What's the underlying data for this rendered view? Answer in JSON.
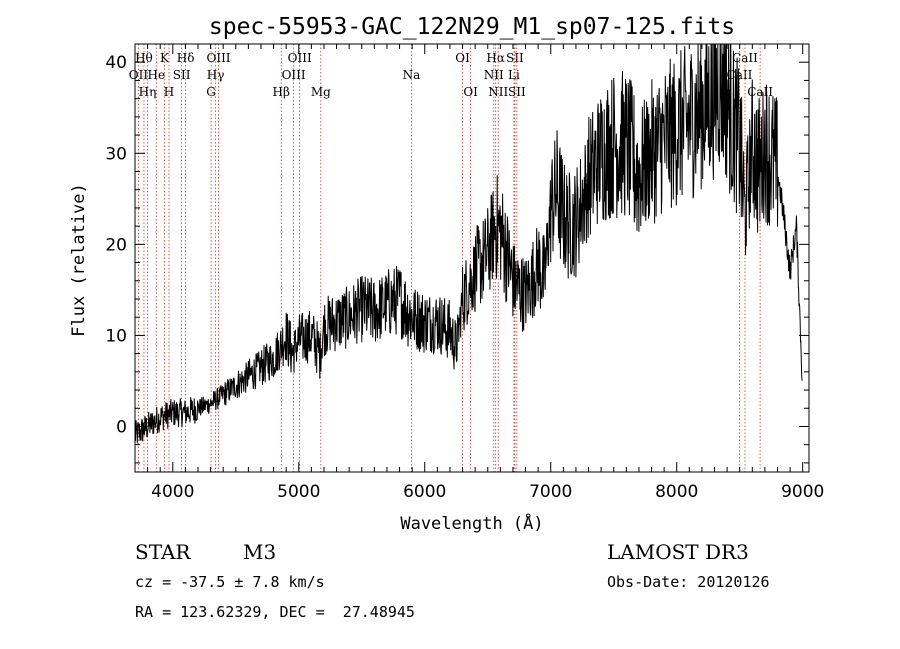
{
  "chart_data": {
    "type": "line",
    "title": "spec-55953-GAC_122N29_M1_sp07-125.fits",
    "xlabel": "Wavelength (Å)",
    "ylabel": "Flux (relative)",
    "xlim": [
      3700,
      9050
    ],
    "ylim": [
      -5,
      42
    ],
    "xticks": [
      4000,
      5000,
      6000,
      7000,
      8000,
      9000
    ],
    "yticks": [
      0,
      10,
      20,
      30,
      40
    ],
    "series": [
      {
        "name": "flux",
        "color": "#000000",
        "x": [
          3700,
          3800,
          3900,
          4000,
          4100,
          4200,
          4300,
          4400,
          4500,
          4600,
          4700,
          4800,
          4860,
          4900,
          4950,
          5000,
          5100,
          5170,
          5200,
          5300,
          5400,
          5500,
          5600,
          5700,
          5800,
          5900,
          6000,
          6100,
          6200,
          6250,
          6300,
          6400,
          6500,
          6560,
          6600,
          6650,
          6700,
          6750,
          6800,
          6850,
          6900,
          6950,
          7000,
          7050,
          7100,
          7150,
          7200,
          7300,
          7400,
          7500,
          7600,
          7700,
          7800,
          7900,
          8000,
          8100,
          8200,
          8300,
          8350,
          8400,
          8450,
          8500,
          8540,
          8600,
          8660,
          8700,
          8800,
          8850,
          8900,
          8950,
          9000
        ],
        "values": [
          -1,
          0,
          1,
          1.5,
          1.5,
          2,
          2.5,
          3.5,
          4.5,
          5.5,
          6.5,
          7.5,
          9,
          10,
          8,
          9.5,
          10,
          8,
          11,
          11.5,
          12,
          13,
          12.5,
          13.5,
          14,
          12,
          11.5,
          11.5,
          10.5,
          8.5,
          14,
          17,
          19,
          22,
          21.5,
          19,
          16,
          15,
          14.5,
          16,
          18,
          16,
          24,
          26,
          23,
          22,
          22.5,
          27,
          30,
          31,
          31,
          27.5,
          30,
          31.5,
          32.5,
          33.5,
          35,
          36.5,
          38,
          36.5,
          33,
          31,
          23,
          31,
          28,
          31,
          28,
          23,
          17,
          22,
          4
        ]
      }
    ],
    "lines": [
      {
        "wavelength": 3727,
        "label": "OII",
        "row": 2
      },
      {
        "wavelength": 3771,
        "label": "Hθ",
        "row": 1
      },
      {
        "wavelength": 3799,
        "label": "Hη",
        "row": 3
      },
      {
        "wavelength": 3869,
        "label": "He",
        "row": 2
      },
      {
        "wavelength": 3934,
        "label": "K",
        "row": 1
      },
      {
        "wavelength": 3970,
        "label": "H",
        "row": 3
      },
      {
        "wavelength": 4070,
        "label": "SII",
        "row": 2
      },
      {
        "wavelength": 4102,
        "label": "Hδ",
        "row": 1
      },
      {
        "wavelength": 4304,
        "label": "G",
        "row": 3
      },
      {
        "wavelength": 4340,
        "label": "Hγ",
        "row": 2
      },
      {
        "wavelength": 4363,
        "label": "OIII",
        "row": 1
      },
      {
        "wavelength": 4861,
        "label": "Hβ",
        "row": 3
      },
      {
        "wavelength": 4959,
        "label": "OIII",
        "row": 2
      },
      {
        "wavelength": 5007,
        "label": "OIII",
        "row": 1
      },
      {
        "wavelength": 5175,
        "label": "Mg",
        "row": 3
      },
      {
        "wavelength": 5894,
        "label": "Na",
        "row": 2
      },
      {
        "wavelength": 6300,
        "label": "OI",
        "row": 1
      },
      {
        "wavelength": 6364,
        "label": "OI",
        "row": 3
      },
      {
        "wavelength": 6548,
        "label": "NII",
        "row": 2
      },
      {
        "wavelength": 6563,
        "label": "Hα",
        "row": 1
      },
      {
        "wavelength": 6583,
        "label": "NII",
        "row": 3
      },
      {
        "wavelength": 6708,
        "label": "Li",
        "row": 2
      },
      {
        "wavelength": 6716,
        "label": "SII",
        "row": 1
      },
      {
        "wavelength": 6731,
        "label": "SII",
        "row": 3
      },
      {
        "wavelength": 8498,
        "label": "CaII",
        "row": 2
      },
      {
        "wavelength": 8542,
        "label": "CaII",
        "row": 1
      },
      {
        "wavelength": 8662,
        "label": "CaII",
        "row": 3
      }
    ]
  },
  "info": {
    "object_class": "STAR",
    "subclass": "M3",
    "survey": "LAMOST DR3",
    "redshift": "cz = -37.5 ± 7.8 km/s",
    "obs_date": "Obs-Date: 20120126",
    "coords": "RA = 123.62329, DEC =  27.48945"
  }
}
